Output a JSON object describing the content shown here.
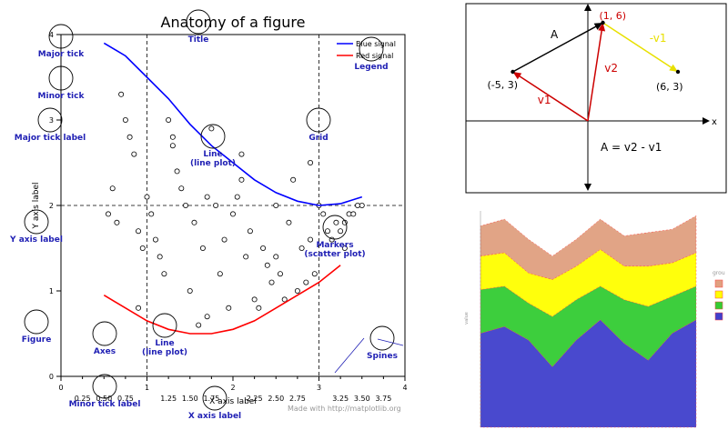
{
  "chart_data": [
    {
      "type": "line",
      "title": "Anatomy of a figure",
      "xlabel": "X axis label",
      "ylabel": "Y axis label",
      "xlim": [
        0,
        4
      ],
      "ylim": [
        0,
        4
      ],
      "grid": true,
      "legend_position": "top-right",
      "x_ticks": [
        "0",
        "1",
        "2",
        "3",
        "4"
      ],
      "x_minor_ticks": [
        "0.25",
        "0.50",
        "0.75",
        "1.25",
        "1.50",
        "1.75",
        "2.25",
        "2.50",
        "2.75",
        "3.25",
        "3.50",
        "3.75"
      ],
      "y_ticks": [
        "0",
        "1",
        "2",
        "3",
        "4"
      ],
      "series": [
        {
          "name": "Blue signal",
          "color": "#0000ff",
          "x": [
            0.5,
            0.75,
            1.0,
            1.25,
            1.5,
            1.75,
            2.0,
            2.25,
            2.5,
            2.75,
            3.0,
            3.25,
            3.5
          ],
          "y": [
            3.9,
            3.75,
            3.5,
            3.25,
            2.95,
            2.7,
            2.5,
            2.3,
            2.15,
            2.05,
            2.0,
            2.02,
            2.1
          ]
        },
        {
          "name": "Red signal",
          "color": "#ff0000",
          "x": [
            0.5,
            0.75,
            1.0,
            1.25,
            1.5,
            1.75,
            2.0,
            2.25,
            2.5,
            2.75,
            3.0,
            3.25
          ],
          "y": [
            0.95,
            0.8,
            0.65,
            0.55,
            0.5,
            0.5,
            0.55,
            0.65,
            0.8,
            0.95,
            1.1,
            1.3
          ]
        }
      ],
      "markers": {
        "x": [
          0.6,
          0.65,
          0.7,
          0.75,
          0.8,
          0.85,
          0.9,
          0.95,
          1.0,
          1.05,
          1.1,
          1.15,
          1.2,
          1.25,
          1.3,
          1.35,
          1.4,
          1.45,
          1.5,
          1.55,
          1.6,
          1.65,
          1.7,
          1.75,
          1.8,
          1.85,
          1.9,
          1.95,
          2.0,
          2.05,
          2.1,
          2.15,
          2.2,
          2.25,
          2.3,
          2.35,
          2.4,
          2.45,
          2.5,
          2.55,
          2.6,
          2.65,
          2.7,
          2.75,
          2.8,
          2.85,
          2.9,
          2.95,
          3.0,
          3.05,
          3.1,
          3.15,
          3.2,
          3.25,
          3.3,
          3.35,
          3.4,
          3.45,
          3.5,
          0.55,
          0.9,
          1.3,
          1.7,
          2.1,
          2.5,
          2.9,
          3.3
        ],
        "y": [
          2.2,
          1.8,
          3.3,
          3.0,
          2.8,
          2.6,
          1.7,
          1.5,
          2.1,
          1.9,
          1.6,
          1.4,
          1.2,
          3.0,
          2.8,
          2.4,
          2.2,
          2.0,
          1.0,
          1.8,
          0.6,
          1.5,
          0.7,
          2.9,
          2.0,
          1.2,
          1.6,
          0.8,
          1.9,
          2.1,
          2.3,
          1.4,
          1.7,
          0.9,
          0.8,
          1.5,
          1.3,
          1.1,
          2.0,
          1.2,
          0.9,
          1.8,
          2.3,
          1.0,
          1.5,
          1.1,
          1.6,
          1.2,
          2.0,
          1.9,
          1.7,
          1.6,
          1.8,
          1.7,
          1.8,
          1.9,
          1.9,
          2.0,
          2.0,
          1.9,
          0.8,
          2.7,
          2.1,
          2.6,
          1.4,
          2.5,
          1.5
        ]
      },
      "annotations": [
        {
          "label": "Major tick"
        },
        {
          "label": "Minor tick"
        },
        {
          "label": "Major tick label"
        },
        {
          "label": "Y axis label"
        },
        {
          "label": "Figure"
        },
        {
          "label": "Axes"
        },
        {
          "label": "Minor tick label"
        },
        {
          "label": "X axis label"
        },
        {
          "label": "Title"
        },
        {
          "label": "Legend"
        },
        {
          "label": "Grid"
        },
        {
          "label": "Line (line plot)"
        },
        {
          "label": "Markers (scatter plot)"
        },
        {
          "label": "Line (line plot)"
        },
        {
          "label": "Spines"
        }
      ],
      "footer": "Made with http://matplotlib.org"
    },
    {
      "type": "diagram",
      "points": [
        {
          "label": "(-5, 3)",
          "x": -5,
          "y": 3
        },
        {
          "label": "(1, 6)",
          "x": 1,
          "y": 6
        },
        {
          "label": "(6, 3)",
          "x": 6,
          "y": 3
        }
      ],
      "vectors": [
        {
          "label": "A",
          "from": [
            -5,
            3
          ],
          "to": [
            1,
            6
          ],
          "color": "#000000"
        },
        {
          "label": "v2",
          "from": [
            0,
            0
          ],
          "to": [
            1,
            6
          ],
          "color": "#cc0000"
        },
        {
          "label": "v1",
          "from": [
            0,
            0
          ],
          "to": [
            -5,
            3
          ],
          "color": "#cc0000"
        },
        {
          "label": "-v1",
          "from": [
            1,
            6
          ],
          "to": [
            6,
            3
          ],
          "color": "#e8e000"
        }
      ],
      "axis_label": "x",
      "equation": "A  =  v2 - v1"
    },
    {
      "type": "area",
      "x": [
        0,
        1,
        2,
        3,
        4,
        5,
        6,
        7,
        8,
        9
      ],
      "series": [
        {
          "color": "#4040cc",
          "values": [
            2.8,
            3.0,
            2.6,
            1.8,
            2.6,
            3.2,
            2.5,
            2.0,
            2.8,
            3.2
          ]
        },
        {
          "color": "#33cc33",
          "values": [
            1.3,
            1.2,
            1.1,
            1.5,
            1.2,
            1.0,
            1.3,
            1.6,
            1.1,
            1.0
          ]
        },
        {
          "color": "#ffff00",
          "values": [
            1.0,
            1.0,
            0.9,
            1.1,
            1.0,
            1.1,
            1.0,
            1.2,
            1.0,
            1.0
          ]
        },
        {
          "color": "#e0a080",
          "values": [
            0.9,
            1.0,
            1.0,
            0.7,
            0.8,
            0.9,
            0.9,
            1.0,
            1.0,
            1.1
          ]
        }
      ],
      "legend_title": "grou",
      "legend_position": "right",
      "ylabel": "value"
    }
  ]
}
